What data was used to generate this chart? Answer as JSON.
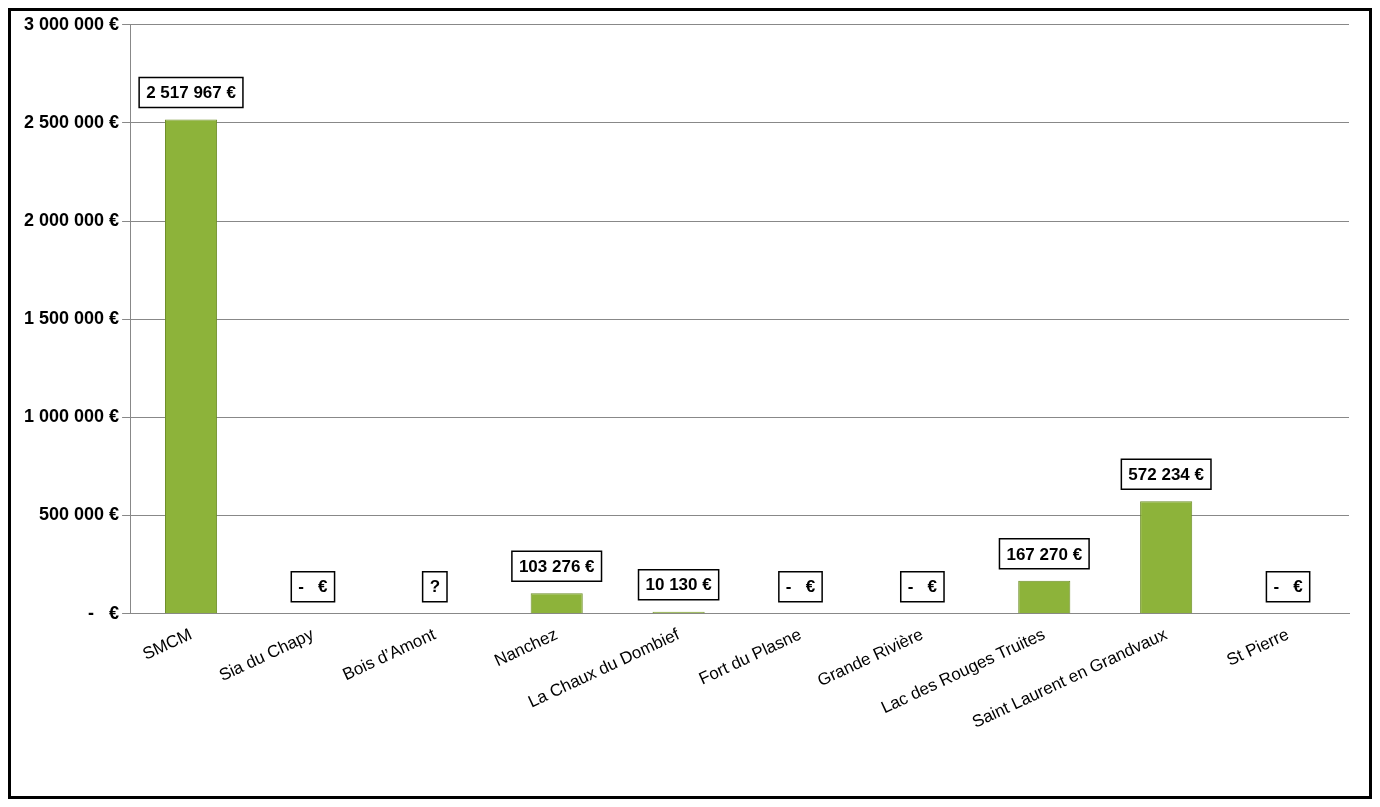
{
  "chart_data": {
    "type": "bar",
    "categories": [
      "SMCM",
      "Sia du Chapy",
      "Bois d’Amont",
      "Nanchez",
      "La Chaux du Dombief",
      "Fort du Plasne",
      "Grande Rivière",
      "Lac des Rouges Truites",
      "Saint Laurent en Grandvaux",
      "St Pierre"
    ],
    "values": [
      2517967,
      0,
      null,
      103276,
      10130,
      0,
      0,
      167270,
      572234,
      0
    ],
    "value_labels": [
      "2 517 967 €",
      "-   €",
      "?",
      "103 276 €",
      "10 130 €",
      "-   €",
      "-   €",
      "167 270 €",
      "572 234 €",
      "-   €"
    ],
    "color": "#8db33a",
    "ylim": [
      0,
      3000000
    ],
    "yticks": [
      {
        "value": 0,
        "label": "-   €"
      },
      {
        "value": 500000,
        "label": "500 000 €"
      },
      {
        "value": 1000000,
        "label": "1 000 000 €"
      },
      {
        "value": 1500000,
        "label": "1 500 000 €"
      },
      {
        "value": 2000000,
        "label": "2 000 000 €"
      },
      {
        "value": 2500000,
        "label": "2 500 000 €"
      },
      {
        "value": 3000000,
        "label": "3 000 000 €"
      }
    ],
    "grid": "y"
  }
}
